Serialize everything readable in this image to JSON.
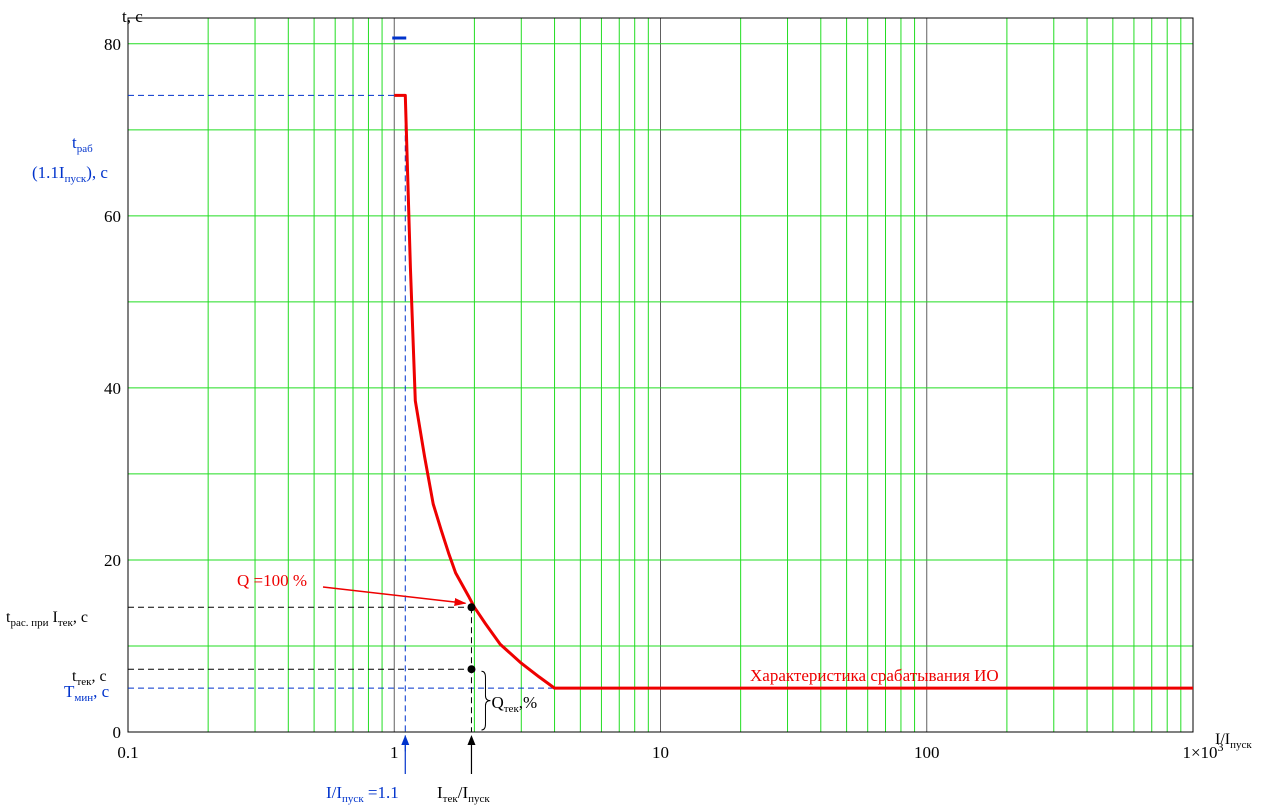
{
  "chart_data": {
    "type": "line",
    "x_scale": "log",
    "xlim": [
      0.1,
      1000
    ],
    "ylim": [
      0,
      83
    ],
    "grid": true,
    "y_ticks": [
      0,
      20,
      40,
      60,
      80
    ],
    "x_ticks": [
      {
        "value": 0.1,
        "label": "0.1"
      },
      {
        "value": 1,
        "label": "1"
      },
      {
        "value": 10,
        "label": "10"
      },
      {
        "value": 100,
        "label": "100"
      },
      {
        "value": 1000,
        "label": "1×10",
        "sup": "3"
      }
    ],
    "ylabel": "t, с",
    "xlabel": {
      "main": "I/I",
      "sub": "пуск"
    },
    "series": [
      {
        "name": "Характеристика срабатывания ИО",
        "color": "#ee0000",
        "points": [
          [
            1.0,
            74.0
          ],
          [
            1.1,
            74.0
          ],
          [
            1.15,
            54
          ],
          [
            1.2,
            38.5
          ],
          [
            1.3,
            32
          ],
          [
            1.4,
            26.5
          ],
          [
            1.5,
            23.5
          ],
          [
            1.6,
            20.8
          ],
          [
            1.7,
            18.5
          ],
          [
            1.9,
            15.8
          ],
          [
            2.0,
            14.5
          ],
          [
            2.2,
            12.6
          ],
          [
            2.5,
            10.2
          ],
          [
            3.0,
            8.0
          ],
          [
            3.5,
            6.4
          ],
          [
            4.0,
            5.1
          ],
          [
            10,
            5.1
          ],
          [
            100,
            5.1
          ],
          [
            1000,
            5.1
          ]
        ]
      }
    ],
    "reference_lines": {
      "current_ratio_marker": {
        "x": 1.1,
        "color": "#0033cc"
      },
      "current_point_marker": {
        "x": 1.95
      },
      "t_rab": {
        "y": 74.0,
        "color": "#0033cc"
      },
      "t_ras": {
        "y": 14.5
      },
      "t_tek": {
        "y": 7.3
      },
      "T_min": {
        "y": 5.1,
        "color": "#0033cc"
      }
    },
    "points": [
      {
        "x": 1.95,
        "y": 14.5,
        "color": "#000000"
      },
      {
        "x": 1.95,
        "y": 7.3,
        "color": "#000000"
      }
    ],
    "top_tick_mark": {
      "x": 1.0,
      "y": 83.0,
      "color": "#0033cc"
    },
    "annotations": {
      "curve_label": {
        "text": "Характеристика срабатывания ИО",
        "color": "#ee0000"
      },
      "q100": {
        "text": "Q =100 %",
        "color": "#ee0000"
      },
      "t_rab": {
        "main": "t",
        "sub": "раб",
        "line2_pre": "(1.1I",
        "line2_sub": "пуск",
        "line2_post": "), c",
        "color": "#0033cc"
      },
      "t_ras": {
        "main": "t",
        "sub": "рас. при",
        "mid": " I",
        "sub2": "тек",
        "post": ", c"
      },
      "t_tek": {
        "main": "t",
        "sub": "тек",
        "post": ", c"
      },
      "T_min": {
        "main": "T",
        "sub": "мин",
        "post": ", c",
        "color": "#0033cc"
      },
      "Q_tek": {
        "main": "Q",
        "sub": "тек",
        "post": ",%"
      },
      "ratio_11": {
        "main": "I/I",
        "sub": "пуск",
        "post": " =1.1",
        "color": "#0033cc"
      },
      "ratio_tek": {
        "main": "I",
        "sub": "тек",
        "mid": "/I",
        "sub2": "пуск"
      }
    }
  }
}
